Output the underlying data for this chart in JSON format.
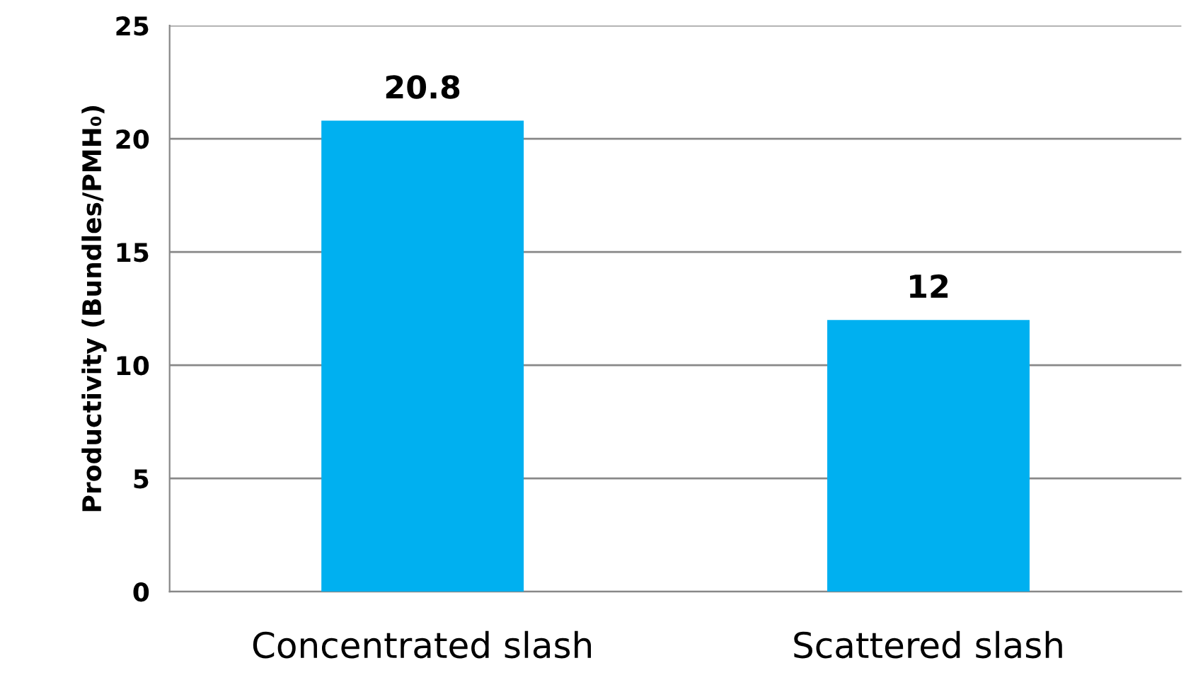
{
  "chart_data": {
    "type": "bar",
    "ylabel": "Productivity (Bundles/PMH₀)",
    "categories": [
      "Concentrated slash",
      "Scattered slash"
    ],
    "values": [
      20.8,
      12
    ],
    "color": "#00b0f0",
    "ylim": [
      0,
      25
    ],
    "yticks": [
      0,
      5,
      10,
      15,
      20,
      25
    ],
    "grid": "y",
    "data_labels": true
  }
}
